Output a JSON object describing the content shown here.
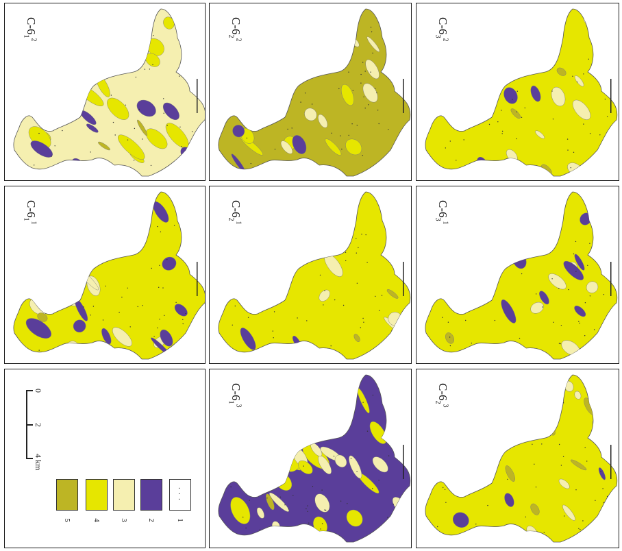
{
  "panels": [
    {
      "id": "p1",
      "base": "C-6",
      "sub": "1",
      "sup": "2"
    },
    {
      "id": "p2",
      "base": "C-6",
      "sub": "2",
      "sup": "2"
    },
    {
      "id": "p3",
      "base": "C-6",
      "sub": "3",
      "sup": "2"
    },
    {
      "id": "p4",
      "base": "C-6",
      "sub": "1",
      "sup": "1"
    },
    {
      "id": "p5",
      "base": "C-6",
      "sub": "2",
      "sup": "1"
    },
    {
      "id": "p6",
      "base": "C-6",
      "sub": "3",
      "sup": "1"
    },
    {
      "id": "p8",
      "base": "C-6",
      "sub": "1",
      "sup": "3"
    },
    {
      "id": "p9",
      "base": "C-6",
      "sub": "2",
      "sup": "3"
    }
  ],
  "scale": {
    "ticks": [
      "0",
      "2",
      "4 km"
    ]
  },
  "legend": [
    {
      "num": "5",
      "color": "#bdb524"
    },
    {
      "num": "4",
      "color": "#e6e600"
    },
    {
      "num": "3",
      "color": "#f5efb0"
    },
    {
      "num": "2",
      "color": "#5a3e9a"
    },
    {
      "num": "1",
      "color": "#ffffff"
    }
  ],
  "colors": {
    "dark_olive": "#bdb524",
    "yellow": "#e6e600",
    "cream": "#f5efb0",
    "purple": "#5a3e9a",
    "white": "#ffffff",
    "border": "#1a1a1a"
  }
}
